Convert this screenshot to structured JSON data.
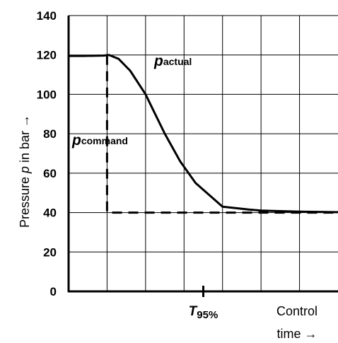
{
  "chart_data": {
    "type": "line",
    "ylabel_prefix": "Pressure ",
    "ylabel_var": "p",
    "ylabel_suffix": " in bar →",
    "xlabel_line1": "Control",
    "xlabel_line2": "time →",
    "ylim": [
      0,
      140
    ],
    "yticks": [
      "0",
      "20",
      "40",
      "60",
      "80",
      "100",
      "120",
      "140"
    ],
    "grid": true,
    "series": [
      {
        "name_main": "p",
        "name_sub": "actual",
        "style": "solid",
        "x": [
          0,
          0.4,
          0.9,
          1.05,
          1.3,
          1.6,
          2.0,
          2.2,
          2.5,
          2.9,
          3.3,
          4.0,
          4.7,
          5.0,
          6.0,
          7.0
        ],
        "y": [
          119.5,
          119.5,
          119.7,
          120,
          118,
          112,
          100,
          92,
          80,
          66,
          55,
          43,
          41.5,
          41,
          40.5,
          40.2
        ]
      },
      {
        "name_main": "p",
        "name_sub": "command",
        "style": "dashed",
        "x": [
          1,
          1,
          7
        ],
        "y": [
          120,
          40,
          40
        ]
      }
    ],
    "annotations": [
      {
        "main": "T",
        "sub": "95%",
        "x": 3.5
      }
    ]
  }
}
